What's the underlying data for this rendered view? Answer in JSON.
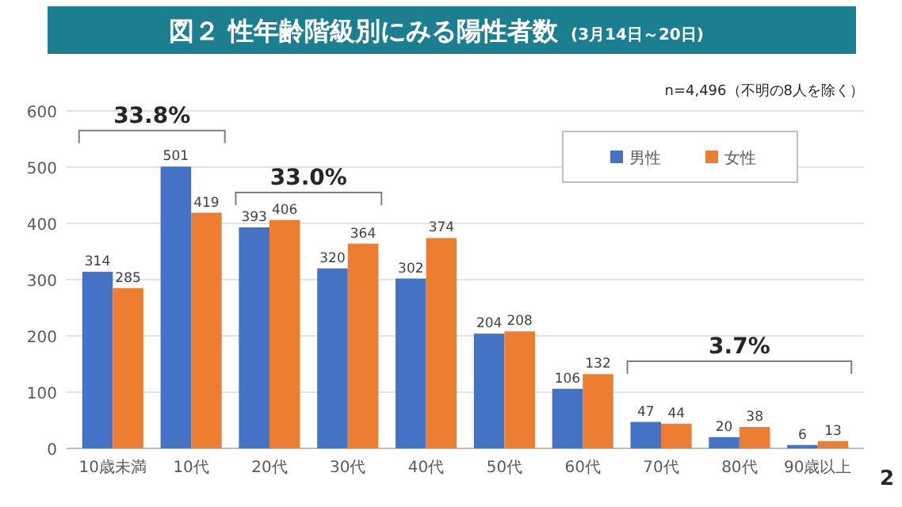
{
  "chart_data": {
    "type": "bar",
    "title": "図２ 性年齢階級別にみる陽性者数",
    "subtitle": "(3月14日～20日)",
    "categories": [
      "10歳未満",
      "10代",
      "20代",
      "30代",
      "40代",
      "50代",
      "60代",
      "70代",
      "80代",
      "90歳以上"
    ],
    "series": [
      {
        "name": "男性",
        "color": "#4472c4",
        "values": [
          314,
          501,
          393,
          320,
          302,
          204,
          106,
          47,
          20,
          6
        ]
      },
      {
        "name": "女性",
        "color": "#ed7d31",
        "values": [
          285,
          419,
          406,
          364,
          374,
          208,
          132,
          44,
          38,
          13
        ]
      }
    ],
    "ylim": [
      0,
      600
    ],
    "yticks": [
      0,
      100,
      200,
      300,
      400,
      500,
      600
    ],
    "grid": "y",
    "legend": "top right",
    "data_labels": true,
    "annotations": [
      "n=4,496（不明の8人を除く）",
      "33.8%",
      "33.0%",
      "3.7%",
      "2"
    ]
  }
}
